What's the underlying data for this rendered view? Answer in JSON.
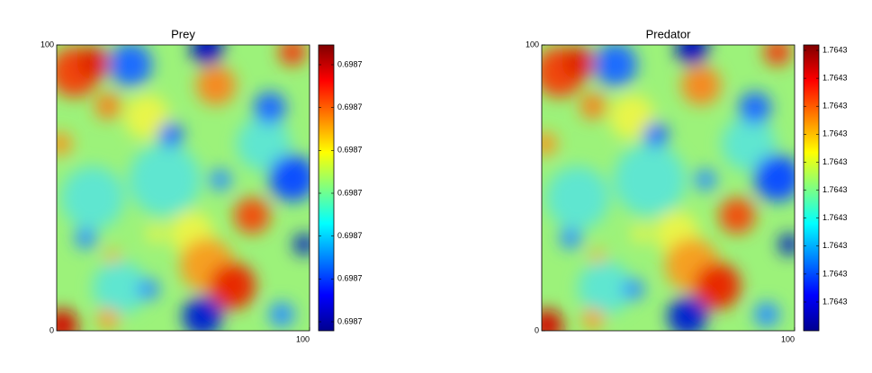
{
  "chart_data": [
    {
      "type": "heatmap",
      "title": "Prey",
      "colormap": "jet",
      "xlim": [
        0,
        100
      ],
      "ylim": [
        0,
        100
      ],
      "xticks": [
        100
      ],
      "yticks": [
        0,
        100
      ],
      "colorbar_ticks": [
        "0.6987",
        "0.6987",
        "0.6987",
        "0.6987",
        "0.6987",
        "0.6987",
        "0.6987"
      ]
    },
    {
      "type": "heatmap",
      "title": "Predator",
      "colormap": "jet",
      "xlim": [
        0,
        100
      ],
      "ylim": [
        0,
        100
      ],
      "xticks": [
        100
      ],
      "yticks": [
        0,
        100
      ],
      "colorbar_ticks": [
        "1.7643",
        "1.7643",
        "1.7643",
        "1.7643",
        "1.7643",
        "1.7643",
        "1.7643",
        "1.7643",
        "1.7643",
        "1.7643"
      ]
    }
  ]
}
